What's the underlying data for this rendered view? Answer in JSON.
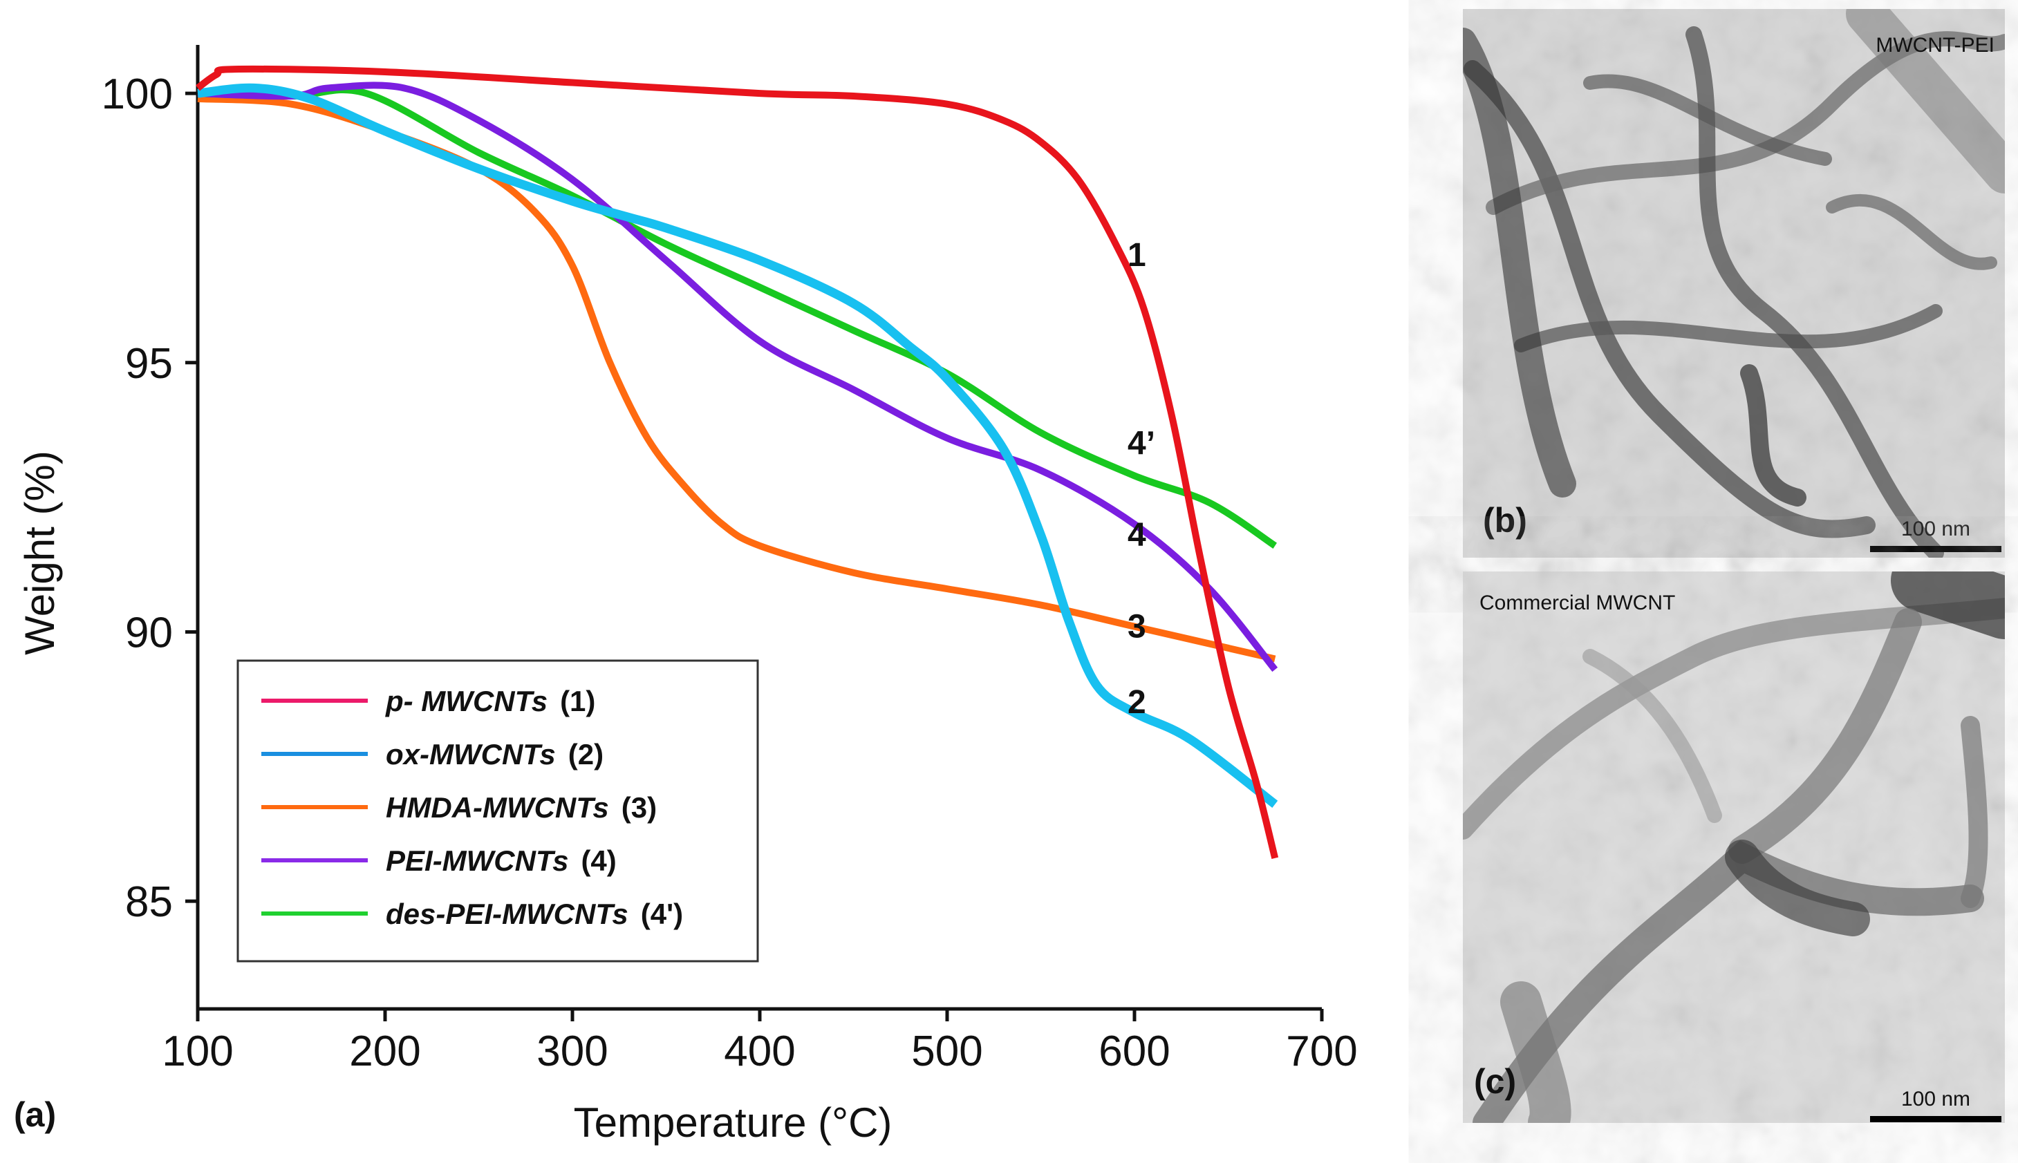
{
  "chart_data": {
    "type": "line",
    "panel_label": "(a)",
    "xlabel": "Temperature (°C)",
    "ylabel": "Weight (%)",
    "xlim": [
      100,
      700
    ],
    "ylim": [
      83,
      100.9
    ],
    "xticks": [
      100,
      200,
      300,
      400,
      500,
      600,
      700
    ],
    "yticks": [
      85,
      90,
      95,
      100
    ],
    "grid": false,
    "legend_placement": "bottom-left",
    "series": [
      {
        "name": "p- MWCNTs",
        "tag": "(1)",
        "curve_label": "1",
        "color": "#e8141c",
        "legend_color": "#ec1a6a",
        "x": [
          100,
          110,
          120,
          200,
          300,
          400,
          450,
          500,
          530,
          550,
          570,
          590,
          605,
          620,
          635,
          650,
          665,
          675
        ],
        "y": [
          100.1,
          100.35,
          100.45,
          100.4,
          100.2,
          100.0,
          99.95,
          99.8,
          99.5,
          99.1,
          98.4,
          97.2,
          96.0,
          94.0,
          91.4,
          89.0,
          87.2,
          85.8
        ]
      },
      {
        "name": "ox-MWCNTs",
        "tag": "(2)",
        "curve_label": "2",
        "color": "#18c0f0",
        "legend_color": "#1a8fe0",
        "x": [
          100,
          130,
          160,
          200,
          250,
          300,
          330,
          350,
          400,
          450,
          480,
          500,
          530,
          550,
          565,
          580,
          600,
          630,
          675
        ],
        "y": [
          100.0,
          100.1,
          99.9,
          99.3,
          98.6,
          98.0,
          97.7,
          97.5,
          96.9,
          96.1,
          95.3,
          94.7,
          93.4,
          91.8,
          90.2,
          89.0,
          88.5,
          88.0,
          86.8
        ]
      },
      {
        "name": "HMDA-MWCNTs",
        "tag": "(3)",
        "curve_label": "3",
        "color": "#ff6a10",
        "legend_color": "#ff6a10",
        "x": [
          100,
          150,
          200,
          250,
          280,
          300,
          320,
          340,
          360,
          380,
          400,
          450,
          500,
          550,
          600,
          675
        ],
        "y": [
          99.9,
          99.8,
          99.3,
          98.6,
          97.8,
          96.8,
          95.0,
          93.6,
          92.7,
          92.0,
          91.6,
          91.1,
          90.8,
          90.5,
          90.1,
          89.5
        ]
      },
      {
        "name": "PEI-MWCNTs",
        "tag": "(4)",
        "curve_label": "4",
        "color": "#7a1ee0",
        "legend_color": "#8a2ae8",
        "x": [
          100,
          150,
          170,
          210,
          250,
          300,
          350,
          400,
          450,
          500,
          550,
          600,
          640,
          675
        ],
        "y": [
          100.0,
          99.95,
          100.1,
          100.1,
          99.5,
          98.4,
          96.9,
          95.4,
          94.5,
          93.6,
          93.0,
          92.0,
          90.8,
          89.3
        ]
      },
      {
        "name": "des-PEI-MWCNTs",
        "tag": "(4')",
        "curve_label": "4’",
        "color": "#18c820",
        "legend_color": "#20d030",
        "x": [
          100,
          150,
          190,
          250,
          300,
          350,
          400,
          450,
          500,
          550,
          600,
          640,
          675
        ],
        "y": [
          100.0,
          99.95,
          100.0,
          98.9,
          98.1,
          97.2,
          96.4,
          95.6,
          94.8,
          93.7,
          92.9,
          92.4,
          91.6
        ]
      }
    ]
  },
  "images": {
    "b": {
      "panel_label": "(b)",
      "caption": "MWCNT-PEI",
      "scale_bar": "100 nm"
    },
    "c": {
      "panel_label": "(c)",
      "caption": "Commercial MWCNT",
      "scale_bar": "100 nm"
    }
  }
}
